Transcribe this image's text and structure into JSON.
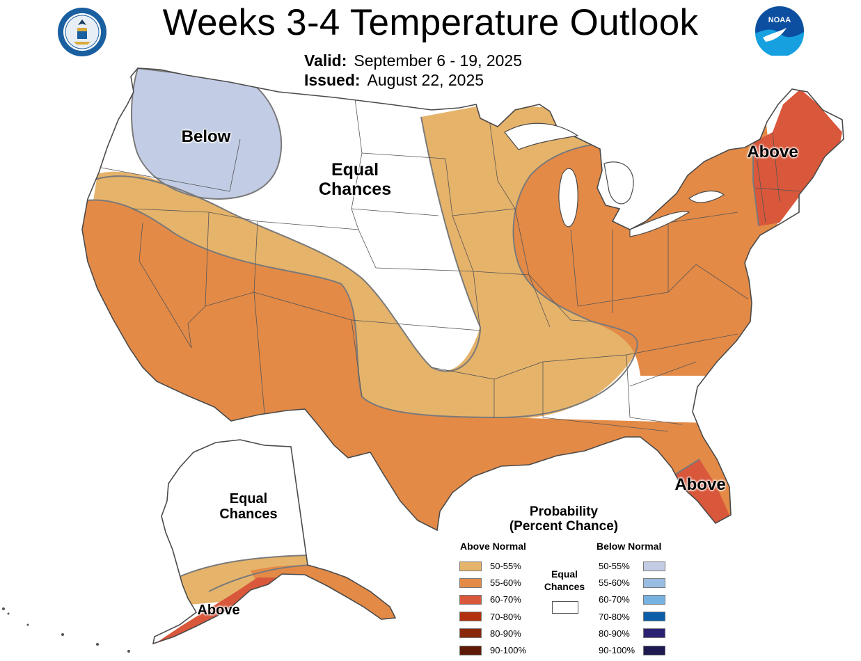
{
  "title": "Weeks 3-4 Temperature Outlook",
  "valid_label": "Valid:",
  "valid_value": "September 6 - 19, 2025",
  "issued_label": "Issued:",
  "issued_value": "August 22, 2025",
  "logos": {
    "left": "doc-seal-icon",
    "right": "noaa-logo-icon",
    "noaa_text": "NOAA"
  },
  "map_labels": {
    "below": "Below",
    "equal_l1": "Equal",
    "equal_l2": "Chances",
    "above_ne": "Above",
    "above_fl": "Above",
    "ak_equal_l1": "Equal",
    "ak_equal_l2": "Chances",
    "ak_above": "Above"
  },
  "legend": {
    "title_l1": "Probability",
    "title_l2": "(Percent Chance)",
    "above_header": "Above Normal",
    "below_header": "Below Normal",
    "equal_l1": "Equal",
    "equal_l2": "Chances",
    "above": [
      {
        "label": "50-55%",
        "color": "#e6b36a"
      },
      {
        "label": "55-60%",
        "color": "#e38a47"
      },
      {
        "label": "60-70%",
        "color": "#d9573a"
      },
      {
        "label": "70-80%",
        "color": "#b2320f"
      },
      {
        "label": "80-90%",
        "color": "#8a260a"
      },
      {
        "label": "90-100%",
        "color": "#5e1a06"
      }
    ],
    "below": [
      {
        "label": "50-55%",
        "color": "#c2cce5"
      },
      {
        "label": "55-60%",
        "color": "#99bde2"
      },
      {
        "label": "60-70%",
        "color": "#77b3e2"
      },
      {
        "label": "70-80%",
        "color": "#0b5ea8"
      },
      {
        "label": "80-90%",
        "color": "#2b2173"
      },
      {
        "label": "90-100%",
        "color": "#1c1a50"
      }
    ]
  },
  "colors": {
    "above_50_55": "#e6b36a",
    "above_55_60": "#e38a47",
    "above_60_70": "#d9573a",
    "below_50_55": "#c2cce5",
    "equal_chances": "#ffffff"
  }
}
